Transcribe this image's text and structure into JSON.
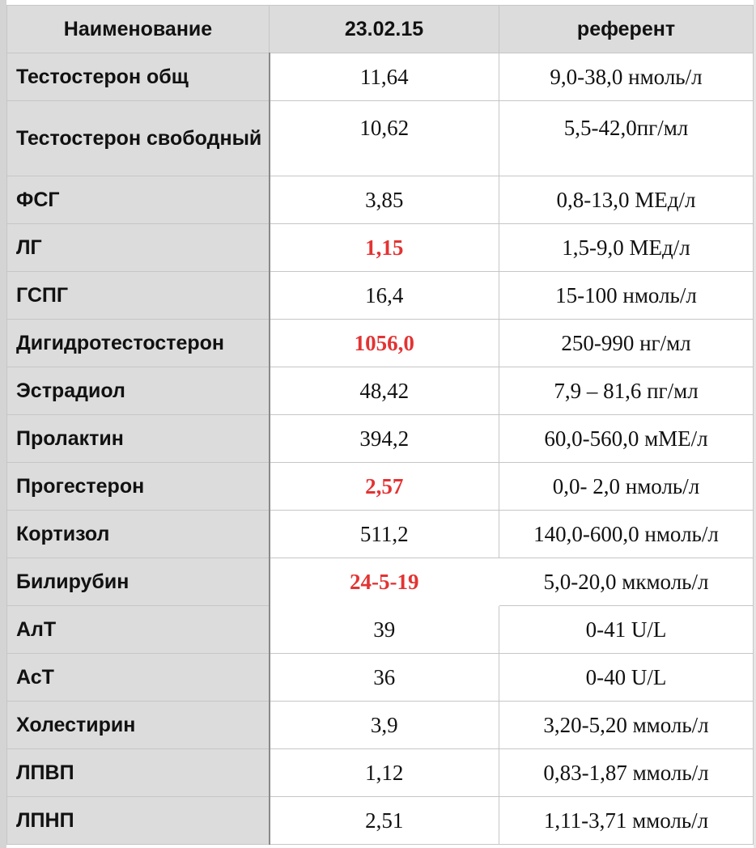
{
  "table": {
    "headers": [
      "Наименование",
      "23.02.15",
      "референт"
    ],
    "rows": [
      {
        "name": "Тестостерон общ",
        "value": "11,64",
        "ref": "9,0-38,0 нмоль/л",
        "flag": false
      },
      {
        "name": "Тестостерон свободный",
        "value": "10,62",
        "ref": "5,5-42,0пг/мл",
        "flag": false
      },
      {
        "name": "ФСГ",
        "value": "3,85",
        "ref": "0,8-13,0 МЕд/л",
        "flag": false
      },
      {
        "name": "ЛГ",
        "value": "1,15",
        "ref": "1,5-9,0 МЕд/л",
        "flag": true
      },
      {
        "name": "ГСПГ",
        "value": "16,4",
        "ref": "15-100 нмоль/л",
        "flag": false
      },
      {
        "name": "Дигидротестостерон",
        "value": "1056,0",
        "ref": "250-990 нг/мл",
        "flag": true
      },
      {
        "name": "Эстрадиол",
        "value": "48,42",
        "ref": "7,9 – 81,6 пг/мл",
        "flag": false
      },
      {
        "name": "Пролактин",
        "value": "394,2",
        "ref": "60,0-560,0 мМЕ/л",
        "flag": false
      },
      {
        "name": "Прогестерон",
        "value": "2,57",
        "ref": "0,0- 2,0 нмоль/л",
        "flag": true
      },
      {
        "name": "Кортизол",
        "value": "511,2",
        "ref": "140,0-600,0 нмоль/л",
        "flag": false
      },
      {
        "name": "Билирубин",
        "value": "24-5-19",
        "ref": "5,0-20,0 мкмоль/л",
        "flag": true
      },
      {
        "name": "АлТ",
        "value": "39",
        "ref": "0-41 U/L",
        "flag": false
      },
      {
        "name": "АсТ",
        "value": "36",
        "ref": "0-40 U/L",
        "flag": false
      },
      {
        "name": "Холестирин",
        "value": "3,9",
        "ref": "3,20-5,20 ммоль/л",
        "flag": false
      },
      {
        "name": "ЛПВП",
        "value": "1,12",
        "ref": "0,83-1,87 ммоль/л",
        "flag": false
      },
      {
        "name": "ЛПНП",
        "value": "2,51",
        "ref": "1,11-3,71 ммоль/л",
        "flag": false
      }
    ]
  },
  "colors": {
    "flag": "#e33333",
    "header_bg": "#dcdcdc",
    "name_col_bg": "#dcdcdc"
  }
}
